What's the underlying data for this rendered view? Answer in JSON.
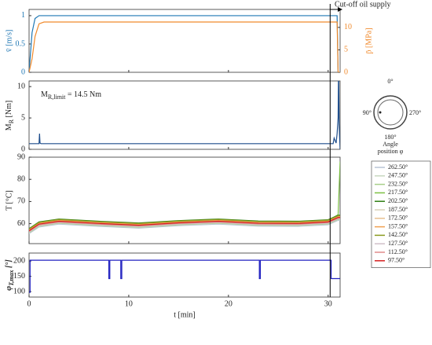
{
  "chart_data": [
    {
      "type": "line",
      "xlim": [
        0,
        31.2
      ],
      "xticks": [
        0,
        10,
        20,
        30
      ],
      "ylim": [
        0,
        1.11
      ],
      "yticks": [
        0,
        0.5,
        1
      ],
      "y2lim": [
        0,
        14
      ],
      "y2ticks": [
        0,
        5,
        10
      ],
      "ylabel": "v̄ [m/s]",
      "y2label": "p̄ [MPa]",
      "annotation": {
        "text": "Cut-off oil supply",
        "x": 30.2
      },
      "x": [
        0,
        0.3,
        0.6,
        1,
        1.5,
        5,
        10,
        20,
        30,
        30.9,
        31.0,
        31.2
      ],
      "series": [
        {
          "name": "v̄",
          "color": "#1f77b4",
          "values": [
            0,
            0.7,
            0.95,
            1,
            1,
            1,
            1,
            1,
            1,
            1,
            0,
            0
          ]
        },
        {
          "name": "p̄",
          "color": "#f08a2c",
          "axis": "y2",
          "values": [
            0,
            3,
            8,
            10.8,
            11.2,
            11.2,
            11.2,
            11.2,
            11.2,
            11.2,
            0,
            0
          ]
        }
      ]
    },
    {
      "type": "line",
      "xlim": [
        0,
        31.2
      ],
      "xticks": [
        0,
        10,
        20,
        30
      ],
      "ylim": [
        0,
        10.9
      ],
      "yticks": [
        0,
        5,
        10
      ],
      "ylabel": {
        "main": "M",
        "sub": "R",
        "rest": " [Nm]"
      },
      "annotation": {
        "main": "M",
        "sub": "R,limit",
        "rest": " = 14.5 Nm"
      },
      "x": [
        0,
        1,
        1.05,
        1.1,
        1.2,
        5,
        10,
        20,
        29,
        30.5,
        30.6,
        30.8,
        30.9,
        31.0,
        31.05,
        31.1,
        31.2
      ],
      "series": [
        {
          "name": "M_R",
          "color": "#1f4e8c",
          "values": [
            0.9,
            0.9,
            2.5,
            1.0,
            0.9,
            0.9,
            0.9,
            0.9,
            0.9,
            0.9,
            1.8,
            1.0,
            2.5,
            5,
            14,
            4,
            0
          ]
        }
      ]
    },
    {
      "type": "line",
      "xlim": [
        0,
        31.2
      ],
      "xticks": [
        0,
        10,
        20,
        30
      ],
      "ylim": [
        51,
        90
      ],
      "yticks": [
        60,
        70,
        80,
        90
      ],
      "ylabel": "T [°C]",
      "legend": true,
      "x": [
        0,
        1,
        3,
        7,
        11,
        15,
        19,
        23,
        27,
        30,
        31,
        31.2
      ],
      "series": [
        {
          "name": "262.50°",
          "color": "#b8c4d6",
          "values": [
            55.5,
            58.5,
            59.8,
            58.8,
            58,
            59.1,
            59.8,
            58.9,
            58.8,
            59.5,
            61.5,
            61.5
          ]
        },
        {
          "name": "247.50°",
          "color": "#c8d8c0",
          "values": [
            55.8,
            58.8,
            60.1,
            59.1,
            58.3,
            59.4,
            60.1,
            59.2,
            59.1,
            59.8,
            61.8,
            61.8
          ]
        },
        {
          "name": "232.50°",
          "color": "#a8d08a",
          "values": [
            56,
            59,
            60.3,
            59.3,
            58.5,
            59.6,
            60.3,
            59.4,
            59.3,
            60,
            62,
            62
          ]
        },
        {
          "name": "217.50°",
          "color": "#7cc043",
          "values": [
            57.5,
            60.5,
            61.8,
            60.8,
            60,
            61.1,
            61.8,
            60.9,
            60.8,
            61.5,
            64,
            88
          ]
        },
        {
          "name": "202.50°",
          "color": "#2e7d12",
          "values": [
            57.8,
            60.8,
            62.1,
            61.1,
            60.3,
            61.4,
            62.1,
            61.2,
            61.1,
            61.8,
            63.8,
            63.8
          ]
        },
        {
          "name": "187.50°",
          "color": "#d8d0b8",
          "values": [
            56.7,
            59.7,
            61,
            60,
            59.2,
            60.3,
            61,
            60.1,
            60,
            60.7,
            62.7,
            62.7
          ]
        },
        {
          "name": "172.50°",
          "color": "#e8c090",
          "values": [
            57,
            60,
            61.3,
            60.3,
            59.5,
            60.6,
            61.3,
            60.4,
            60.3,
            61,
            63,
            63
          ]
        },
        {
          "name": "157.50°",
          "color": "#f0a050",
          "values": [
            57.2,
            60.2,
            61.5,
            60.5,
            59.7,
            60.8,
            61.5,
            60.6,
            60.5,
            61.2,
            63.2,
            63.2
          ]
        },
        {
          "name": "142.50°",
          "color": "#8a9a20",
          "values": [
            57.6,
            60.6,
            61.9,
            60.9,
            60.1,
            61.2,
            61.9,
            61,
            60.9,
            61.6,
            63.6,
            63.6
          ]
        },
        {
          "name": "127.50°",
          "color": "#d0c0c8",
          "values": [
            56.2,
            59.2,
            60.5,
            59.5,
            58.7,
            59.8,
            60.5,
            59.6,
            59.5,
            60.2,
            62.2,
            62.2
          ]
        },
        {
          "name": "112.50°",
          "color": "#e08a8a",
          "values": [
            56.5,
            59.5,
            60.8,
            59.8,
            59,
            60.1,
            60.8,
            59.9,
            59.8,
            60.5,
            62.5,
            62.5
          ]
        },
        {
          "name": "97.50°",
          "color": "#d42020",
          "values": [
            56.8,
            59.8,
            61.1,
            60.1,
            59.3,
            60.4,
            61.1,
            60.2,
            60.1,
            60.8,
            62.8,
            62.8
          ]
        }
      ]
    },
    {
      "type": "line",
      "xlim": [
        0,
        31.2
      ],
      "xticks": [
        0,
        10,
        20,
        30
      ],
      "xlabel": "t [min]",
      "ylim": [
        82,
        226
      ],
      "yticks": [
        100,
        150,
        200
      ],
      "ylabel": {
        "main": "φ",
        "sub": "T,max",
        "rest": " [°]"
      },
      "x": [
        0,
        0.1,
        0.1,
        8,
        8,
        8.1,
        8.1,
        9.2,
        9.2,
        9.3,
        9.3,
        23.1,
        23.1,
        23.2,
        23.2,
        30.3,
        30.3,
        31.2
      ],
      "series": [
        {
          "name": "φ_T,max",
          "color": "#2020c0",
          "values": [
            97.5,
            97.5,
            202.5,
            202.5,
            142.5,
            142.5,
            202.5,
            202.5,
            142.5,
            142.5,
            202.5,
            202.5,
            142.5,
            142.5,
            202.5,
            202.5,
            142.5,
            142.5
          ]
        }
      ]
    }
  ],
  "angle_diagram": {
    "top": "0°",
    "left": "90°",
    "right": "270°",
    "bottom": "180°",
    "caption": [
      "Angle",
      "position φ"
    ]
  }
}
